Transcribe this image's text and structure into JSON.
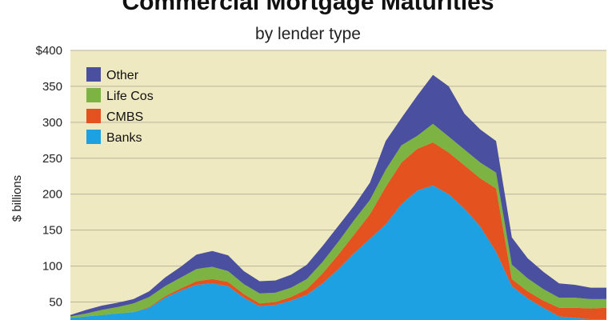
{
  "colors": {
    "background": "#efe9c2",
    "grid": "#b9b49a",
    "Other": "#4a4fa0",
    "Life Cos": "#7cb342",
    "CMBS": "#e4521f",
    "Banks": "#1ea1e3"
  },
  "chart_data": {
    "type": "area",
    "stacked": true,
    "title": "Commercial Mortgage Maturities",
    "subtitle": "by lender type",
    "xlabel": "",
    "ylabel": "$ billions",
    "ylim": [
      25,
      400
    ],
    "yticks": [
      50,
      100,
      150,
      200,
      250,
      300,
      350,
      400
    ],
    "ytick_labels": [
      "50",
      "100",
      "150",
      "200",
      "250",
      "300",
      "350",
      "$400"
    ],
    "grid": true,
    "legend_position": "top-left",
    "x": [
      0,
      1,
      2,
      3,
      4,
      5,
      6,
      7,
      8,
      9,
      10,
      11,
      12,
      13,
      14,
      15,
      16,
      17,
      18,
      19,
      20,
      21,
      22,
      23,
      24,
      25,
      26,
      27,
      28,
      29,
      30,
      31,
      32,
      33,
      34
    ],
    "series": [
      {
        "name": "Banks",
        "values": [
          28,
          30,
          32,
          34,
          36,
          42,
          56,
          66,
          74,
          76,
          72,
          56,
          44,
          46,
          52,
          60,
          76,
          96,
          118,
          138,
          158,
          186,
          205,
          212,
          200,
          180,
          155,
          120,
          72,
          55,
          42,
          30,
          28,
          26,
          26
        ]
      },
      {
        "name": "CMBS",
        "values": [
          0,
          0,
          0,
          0,
          0,
          1,
          2,
          3,
          5,
          6,
          6,
          5,
          4,
          4,
          5,
          8,
          14,
          20,
          26,
          34,
          52,
          58,
          58,
          60,
          58,
          60,
          67,
          88,
          10,
          10,
          10,
          12,
          14,
          15,
          16
        ]
      },
      {
        "name": "Life Cos",
        "values": [
          2,
          4,
          7,
          9,
          12,
          14,
          14,
          15,
          17,
          17,
          15,
          14,
          14,
          13,
          13,
          14,
          16,
          18,
          20,
          20,
          24,
          24,
          18,
          26,
          22,
          22,
          22,
          22,
          20,
          18,
          16,
          14,
          14,
          13,
          12
        ]
      },
      {
        "name": "Other",
        "values": [
          2,
          5,
          6,
          6,
          6,
          8,
          12,
          15,
          20,
          22,
          22,
          18,
          17,
          17,
          18,
          20,
          22,
          22,
          20,
          24,
          40,
          38,
          56,
          68,
          70,
          50,
          46,
          44,
          38,
          28,
          24,
          20,
          18,
          16,
          16
        ]
      }
    ]
  }
}
